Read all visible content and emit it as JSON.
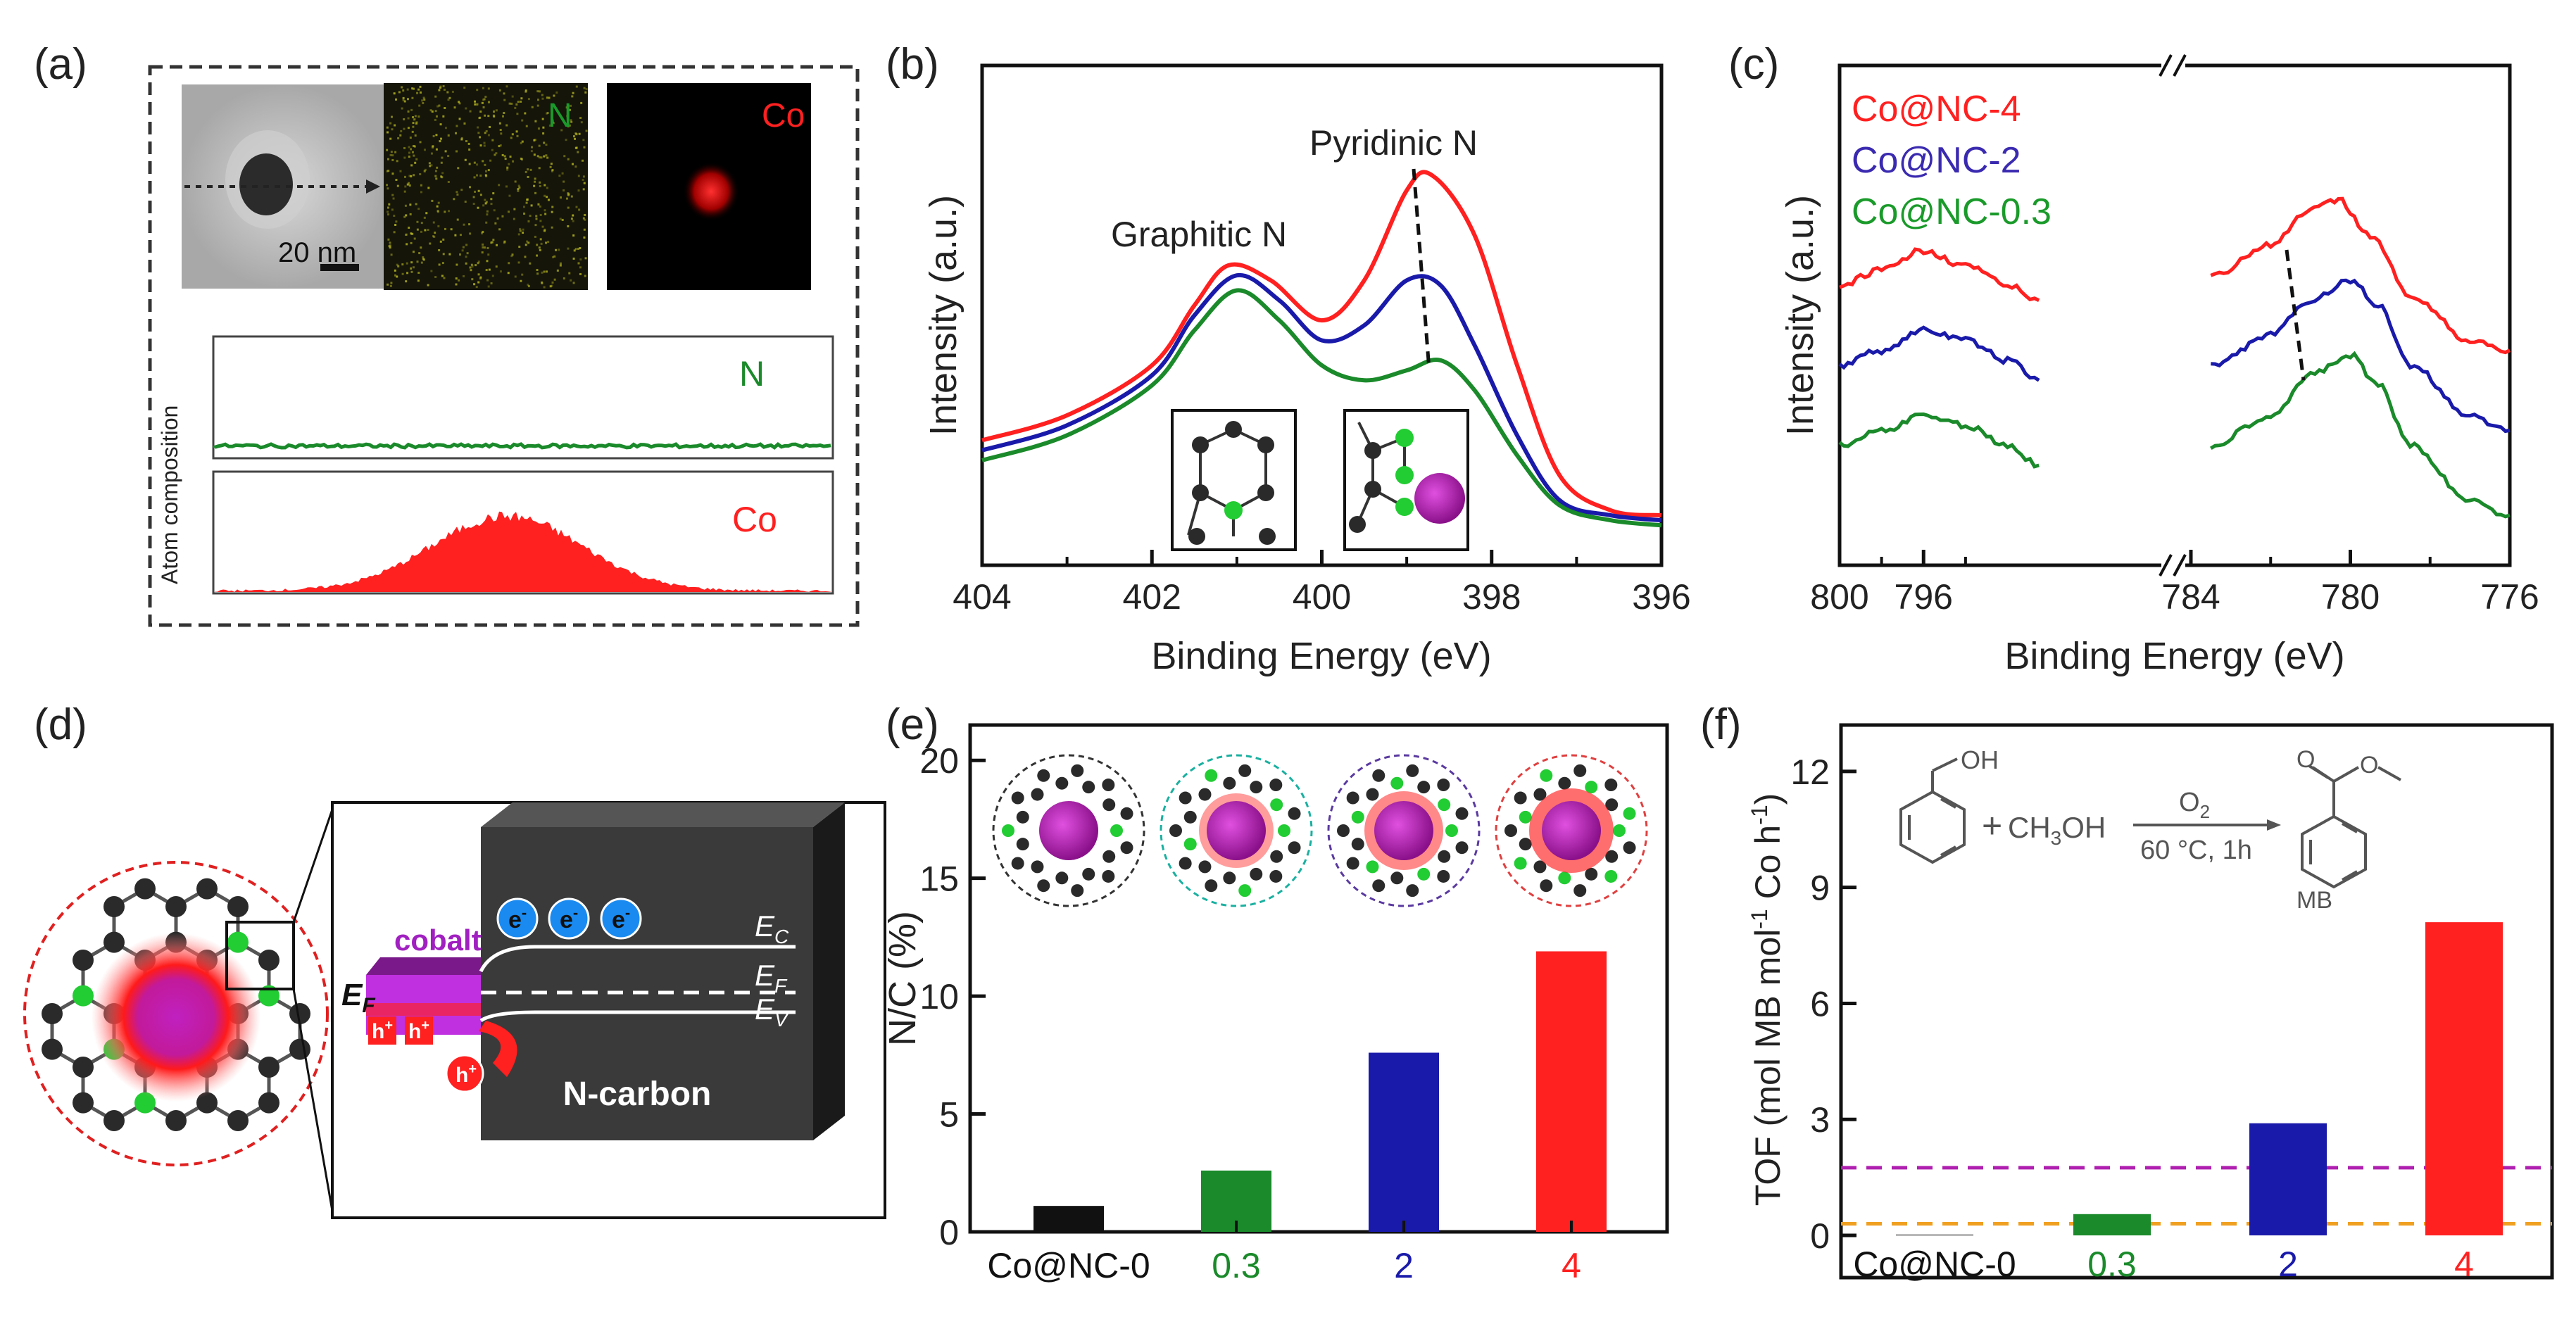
{
  "colors": {
    "red": "#ff2020",
    "blue": "#1a1aaa",
    "green": "#1a8a2a",
    "black": "#111111",
    "purple": "#a020c0",
    "orange": "#f0a020",
    "magenta_dash": "#b020b0"
  },
  "panels": {
    "a": {
      "label": "(a)",
      "scale_bar": "20 nm",
      "map_n": "N",
      "map_co": "Co",
      "ylabel": "Atom composition",
      "line_n": "N",
      "line_co": "Co"
    },
    "b": {
      "label": "(b)",
      "peak1": "Pyridinic N",
      "peak2": "Graphitic N"
    },
    "c": {
      "label": "(c)",
      "legend": [
        "Co@NC-4",
        "Co@NC-2",
        "Co@NC-0.3"
      ]
    },
    "d": {
      "label": "(d)",
      "cobalt": "cobalt",
      "ncarbon": "N-carbon",
      "ef_left": "E",
      "ef_left_sub": "F",
      "ec": "E",
      "ec_sub": "C",
      "ef": "E",
      "ef_sub": "F",
      "ev": "E",
      "ev_sub": "V",
      "electron": "e",
      "electron_sup": "-",
      "hole": "h",
      "hole_sup": "+"
    },
    "e": {
      "label": "(e)"
    },
    "f": {
      "label": "(f)",
      "oh": "OH",
      "plus": "+",
      "methanol": "CH",
      "methanol_sub": "3",
      "methanol_tail": "OH",
      "o2": "O",
      "o2_sub": "2",
      "conditions": "60 °C, 1h",
      "product": "MB"
    }
  },
  "chart_data": [
    {
      "id": "b",
      "type": "line",
      "title": "",
      "xlabel": "Binding Energy (eV)",
      "ylabel": "Intensity (a.u.)",
      "xlim": [
        404,
        396
      ],
      "xticks": [
        404,
        402,
        400,
        398,
        396
      ],
      "ylim": [
        0,
        100
      ],
      "series": [
        {
          "name": "Co@NC-4",
          "color": "#ff2020",
          "x": [
            404,
            403,
            402,
            401.5,
            401.1,
            400.6,
            400,
            399.5,
            399,
            398.7,
            398.2,
            397.7,
            397.2,
            396.6,
            396
          ],
          "y": [
            25,
            30,
            40,
            52,
            60,
            57,
            49,
            57,
            75,
            78,
            66,
            40,
            18,
            11,
            10
          ]
        },
        {
          "name": "Co@NC-2",
          "color": "#1a1aaa",
          "x": [
            404,
            403,
            402,
            401.5,
            401,
            400.5,
            400,
            399.5,
            399,
            398.6,
            398.2,
            397.7,
            397.2,
            396.6,
            396
          ],
          "y": [
            23,
            28,
            38,
            50,
            58,
            53,
            45,
            48,
            57,
            56,
            44,
            26,
            13,
            10,
            9
          ]
        },
        {
          "name": "Co@NC-0.3",
          "color": "#1a8a2a",
          "x": [
            404,
            403,
            402,
            401.5,
            401,
            400.5,
            400,
            399.5,
            399,
            398.6,
            398.2,
            397.7,
            397.2,
            396.6,
            396
          ],
          "y": [
            21,
            26,
            36,
            47,
            55,
            49,
            40,
            37,
            39,
            41,
            35,
            22,
            12,
            9,
            8
          ]
        }
      ]
    },
    {
      "id": "c",
      "type": "line",
      "title": "",
      "xlabel": "Binding Energy (eV)",
      "ylabel": "Intensity (a.u.)",
      "axis_break": true,
      "segments": [
        {
          "xlim": [
            800,
            784
          ],
          "xticks": [
            800,
            796
          ]
        },
        {
          "xlim": [
            784,
            776
          ],
          "xticks": [
            784,
            780,
            776
          ]
        }
      ],
      "ylim": [
        0,
        100
      ],
      "series": [
        {
          "name": "Co@NC-4",
          "color": "#ff2020",
          "x1": [
            800,
            798,
            796,
            794,
            792,
            790.5
          ],
          "y1": [
            56,
            59,
            63,
            60,
            56,
            53
          ],
          "x2": [
            783.5,
            782,
            781,
            780.3,
            779.5,
            778.5,
            777,
            776
          ],
          "y2": [
            58,
            64,
            71,
            73,
            66,
            54,
            45,
            43
          ]
        },
        {
          "name": "Co@NC-2",
          "color": "#1a1aaa",
          "x1": [
            800,
            798,
            796,
            794,
            792,
            790.5
          ],
          "y1": [
            40,
            43,
            47,
            45,
            41,
            37
          ],
          "x2": [
            783.5,
            782,
            781,
            780,
            779.3,
            778.5,
            777,
            776
          ],
          "y2": [
            40,
            46,
            53,
            57,
            52,
            40,
            30,
            27
          ]
        },
        {
          "name": "Co@NC-0.3",
          "color": "#1a8a2a",
          "x1": [
            800,
            798,
            796,
            794,
            792,
            790.5
          ],
          "y1": [
            24,
            27,
            30,
            28,
            24,
            20
          ],
          "x2": [
            783.5,
            782,
            781,
            780,
            779.3,
            778.5,
            777,
            776
          ],
          "y2": [
            24,
            30,
            38,
            42,
            36,
            24,
            13,
            10
          ]
        }
      ]
    },
    {
      "id": "e",
      "type": "bar",
      "title": "",
      "xlabel": "",
      "ylabel": "N/C (%)",
      "ylim": [
        0,
        21.5
      ],
      "yticks": [
        0,
        5,
        10,
        15,
        20
      ],
      "categories": [
        "Co@NC-0",
        "0.3",
        "2",
        "4"
      ],
      "category_colors": [
        "#111111",
        "#1a8a2a",
        "#1a1aaa",
        "#ff2020"
      ],
      "values": [
        1.1,
        2.6,
        7.6,
        11.9
      ]
    },
    {
      "id": "f",
      "type": "bar",
      "title": "",
      "xlabel": "",
      "ylabel": "TOF (mol MB mol",
      "ylabel_sup1": "-1",
      "ylabel_mid": " Co h",
      "ylabel_sup2": "-1",
      "ylabel_end": ")",
      "ylim": [
        0,
        13.2
      ],
      "yticks": [
        0,
        3,
        6,
        9,
        12
      ],
      "categories": [
        "Co@NC-0",
        "0.3",
        "2",
        "4"
      ],
      "category_colors": [
        "#111111",
        "#1a8a2a",
        "#1a1aaa",
        "#ff2020"
      ],
      "values": [
        0.02,
        0.55,
        2.9,
        8.1
      ],
      "reference_lines": [
        {
          "value": 1.75,
          "color": "#b020b0"
        },
        {
          "value": 0.3,
          "color": "#f0a020"
        }
      ]
    }
  ]
}
